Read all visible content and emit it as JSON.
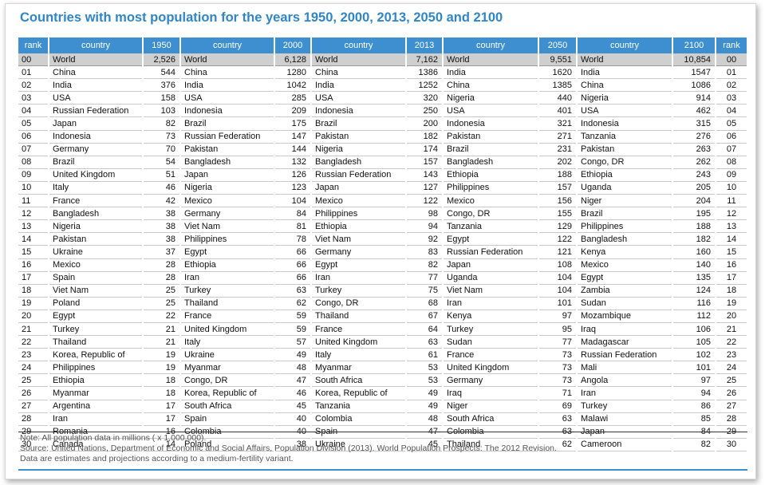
{
  "title": "Countries with most population for the years 1950, 2000, 2013, 2050 and 2100",
  "headers": [
    "rank",
    "country",
    "1950",
    "country",
    "2000",
    "country",
    "2013",
    "country",
    "2050",
    "country",
    "2100",
    "rank"
  ],
  "rows": [
    [
      "00",
      "World",
      "2,526",
      "World",
      "6,128",
      "World",
      "7,162",
      "World",
      "9,551",
      "World",
      "10,854",
      "00"
    ],
    [
      "01",
      "China",
      "544",
      "China",
      "1280",
      "China",
      "1386",
      "India",
      "1620",
      "India",
      "1547",
      "01"
    ],
    [
      "02",
      "India",
      "376",
      "India",
      "1042",
      "India",
      "1252",
      "China",
      "1385",
      "China",
      "1086",
      "02"
    ],
    [
      "03",
      "USA",
      "158",
      "USA",
      "285",
      "USA",
      "320",
      "Nigeria",
      "440",
      "Nigeria",
      "914",
      "03"
    ],
    [
      "04",
      "Russian Federation",
      "103",
      "Indonesia",
      "209",
      "Indonesia",
      "250",
      "USA",
      "401",
      "USA",
      "462",
      "04"
    ],
    [
      "05",
      "Japan",
      "82",
      "Brazil",
      "175",
      "Brazil",
      "200",
      "Indonesia",
      "321",
      "Indonesia",
      "315",
      "05"
    ],
    [
      "06",
      "Indonesia",
      "73",
      "Russian Federation",
      "147",
      "Pakistan",
      "182",
      "Pakistan",
      "271",
      "Tanzania",
      "276",
      "06"
    ],
    [
      "07",
      "Germany",
      "70",
      "Pakistan",
      "144",
      "Nigeria",
      "174",
      "Brazil",
      "231",
      "Pakistan",
      "263",
      "07"
    ],
    [
      "08",
      "Brazil",
      "54",
      "Bangladesh",
      "132",
      "Bangladesh",
      "157",
      "Bangladesh",
      "202",
      "Congo, DR",
      "262",
      "08"
    ],
    [
      "09",
      "United Kingdom",
      "51",
      "Japan",
      "126",
      "Russian Federation",
      "143",
      "Ethiopia",
      "188",
      "Ethiopia",
      "243",
      "09"
    ],
    [
      "10",
      "Italy",
      "46",
      "Nigeria",
      "123",
      "Japan",
      "127",
      "Philippines",
      "157",
      "Uganda",
      "205",
      "10"
    ],
    [
      "11",
      "France",
      "42",
      "Mexico",
      "104",
      "Mexico",
      "122",
      "Mexico",
      "156",
      "Niger",
      "204",
      "11"
    ],
    [
      "12",
      "Bangladesh",
      "38",
      "Germany",
      "84",
      "Philippines",
      "98",
      "Congo, DR",
      "155",
      "Brazil",
      "195",
      "12"
    ],
    [
      "13",
      "Nigeria",
      "38",
      "Viet Nam",
      "81",
      "Ethiopia",
      "94",
      "Tanzania",
      "129",
      "Philippines",
      "188",
      "13"
    ],
    [
      "14",
      "Pakistan",
      "38",
      "Philippines",
      "78",
      "Viet Nam",
      "92",
      "Egypt",
      "122",
      "Bangladesh",
      "182",
      "14"
    ],
    [
      "15",
      "Ukraine",
      "37",
      "Egypt",
      "66",
      "Germany",
      "83",
      "Russian Federation",
      "121",
      "Kenya",
      "160",
      "15"
    ],
    [
      "16",
      "Mexico",
      "28",
      "Ethiopia",
      "66",
      "Egypt",
      "82",
      "Japan",
      "108",
      "Mexico",
      "140",
      "16"
    ],
    [
      "17",
      "Spain",
      "28",
      "Iran",
      "66",
      "Iran",
      "77",
      "Uganda",
      "104",
      "Egypt",
      "135",
      "17"
    ],
    [
      "18",
      "Viet Nam",
      "25",
      "Turkey",
      "63",
      "Turkey",
      "75",
      "Viet Nam",
      "104",
      "Zambia",
      "124",
      "18"
    ],
    [
      "19",
      "Poland",
      "25",
      "Thailand",
      "62",
      "Congo, DR",
      "68",
      "Iran",
      "101",
      "Sudan",
      "116",
      "19"
    ],
    [
      "20",
      "Egypt",
      "22",
      "France",
      "59",
      "Thailand",
      "67",
      "Kenya",
      "97",
      "Mozambique",
      "112",
      "20"
    ],
    [
      "21",
      "Turkey",
      "21",
      "United Kingdom",
      "59",
      "France",
      "64",
      "Turkey",
      "95",
      "Iraq",
      "106",
      "21"
    ],
    [
      "22",
      "Thailand",
      "21",
      "Italy",
      "57",
      "United Kingdom",
      "63",
      "Sudan",
      "77",
      "Madagascar",
      "105",
      "22"
    ],
    [
      "23",
      "Korea, Republic of",
      "19",
      "Ukraine",
      "49",
      "Italy",
      "61",
      "France",
      "73",
      "Russian Federation",
      "102",
      "23"
    ],
    [
      "24",
      "Philippines",
      "19",
      "Myanmar",
      "48",
      "Myanmar",
      "53",
      "United Kingdom",
      "73",
      "Mali",
      "101",
      "24"
    ],
    [
      "25",
      "Ethiopia",
      "18",
      "Congo, DR",
      "47",
      "South Africa",
      "53",
      "Germany",
      "73",
      "Angola",
      "97",
      "25"
    ],
    [
      "26",
      "Myanmar",
      "18",
      "Korea, Republic of",
      "46",
      "Korea, Republic of",
      "49",
      "Iraq",
      "71",
      "Iran",
      "94",
      "26"
    ],
    [
      "27",
      "Argentina",
      "17",
      "South Africa",
      "45",
      "Tanzania",
      "49",
      "Niger",
      "69",
      "Turkey",
      "86",
      "27"
    ],
    [
      "28",
      "Iran",
      "17",
      "Spain",
      "40",
      "Colombia",
      "48",
      "South Africa",
      "63",
      "Malawi",
      "85",
      "28"
    ],
    [
      "29",
      "Romania",
      "16",
      "Colombia",
      "40",
      "Spain",
      "47",
      "Colombia",
      "63",
      "Japan",
      "84",
      "29"
    ],
    [
      "30",
      "Canada",
      "14",
      "Poland",
      "38",
      "Ukraine",
      "45",
      "Thailand",
      "62",
      "Cameroon",
      "82",
      "30"
    ]
  ],
  "notes": [
    "Note: All population data in millions ( x 1,000,000).",
    "Source: United Nations, Department of Economic and Social Affairs, Population Division (2013). World Population Prospects: The 2012 Revision.",
    "Data are estimates and projections according to a medium-fertility variant."
  ],
  "colors": {
    "title": "#2f86c6",
    "header_bg": "#3d8fd0",
    "world_row_bg": "#cfcfcf"
  }
}
